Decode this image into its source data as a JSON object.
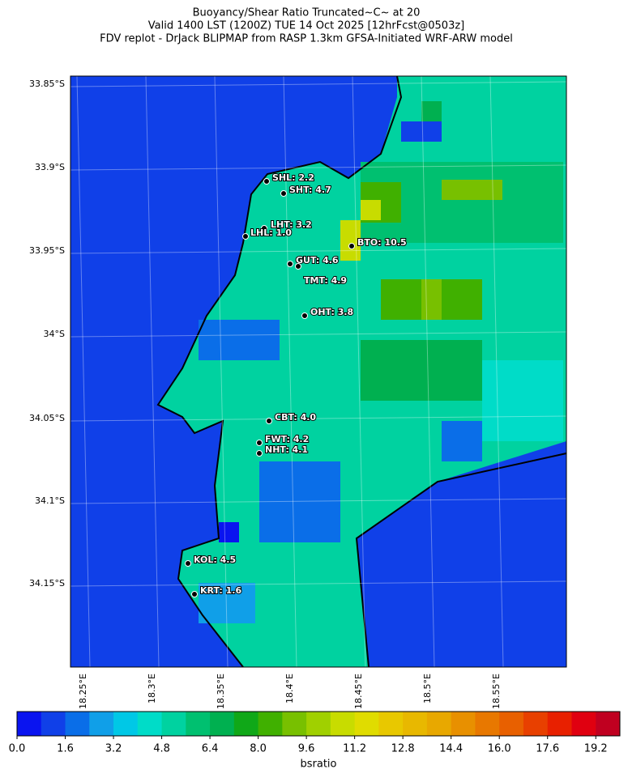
{
  "header": {
    "title_lines": [
      "Buoyancy/Shear Ratio Truncated~C~    at 20",
      "Valid 1400 LST (1200Z) TUE 14 Oct 2025 [12hrFcst@0503z]",
      "FDV replot - DrJack BLIPMAP from RASP 1.3km GFSA-Initiated WRF-ARW model"
    ]
  },
  "map": {
    "lat_labels": [
      "33.85°S",
      "33.9°S",
      "33.95°S",
      "34°S",
      "34.05°S",
      "34.1°S",
      "34.15°S"
    ],
    "lon_labels": [
      "18.25°E",
      "18.3°E",
      "18.35°E",
      "18.4°E",
      "18.45°E",
      "18.5°E",
      "18.55°E"
    ],
    "stations": [
      "SHL: 2.2",
      "SHT: 4.7",
      "LHT: 3.2",
      "LHL: 1.0",
      "BTO: 10.5",
      "GUT: 4.6",
      "TMT: 4.9",
      "OHT: 3.8",
      "CBT: 4.0",
      "FWT: 4.2",
      "NHT: 4.1",
      "KOL: 4.5",
      "KRT: 1.6"
    ]
  },
  "colorbar": {
    "label": "bsratio",
    "range": [
      0,
      20
    ],
    "ticks": [
      {
        "value": 0,
        "label": "0.0"
      },
      {
        "value": 1.6,
        "label": "1.6"
      },
      {
        "value": 3.2,
        "label": "3.2"
      },
      {
        "value": 4.8,
        "label": "4.8"
      },
      {
        "value": 6.4,
        "label": "6.4"
      },
      {
        "value": 8,
        "label": "8.0"
      },
      {
        "value": 9.6,
        "label": "9.6"
      },
      {
        "value": 11.2,
        "label": "11.2"
      },
      {
        "value": 12.8,
        "label": "12.8"
      },
      {
        "value": 14.4,
        "label": "14.4"
      },
      {
        "value": 16,
        "label": "16.0"
      },
      {
        "value": 17.6,
        "label": "17.6"
      },
      {
        "value": 19.2,
        "label": "19.2"
      }
    ],
    "colors": [
      "#0a14f0",
      "#1040e8",
      "#0a6ee8",
      "#109fe8",
      "#00c8e6",
      "#00dcc8",
      "#00d2a0",
      "#00c070",
      "#00b050",
      "#10a818",
      "#40b000",
      "#78c000",
      "#a0d000",
      "#c8dc00",
      "#e0dc00",
      "#e8c800",
      "#e8b800",
      "#e8a800",
      "#e89000",
      "#e87800",
      "#e86000",
      "#e84000",
      "#e82000",
      "#e00010",
      "#c00020"
    ]
  }
}
